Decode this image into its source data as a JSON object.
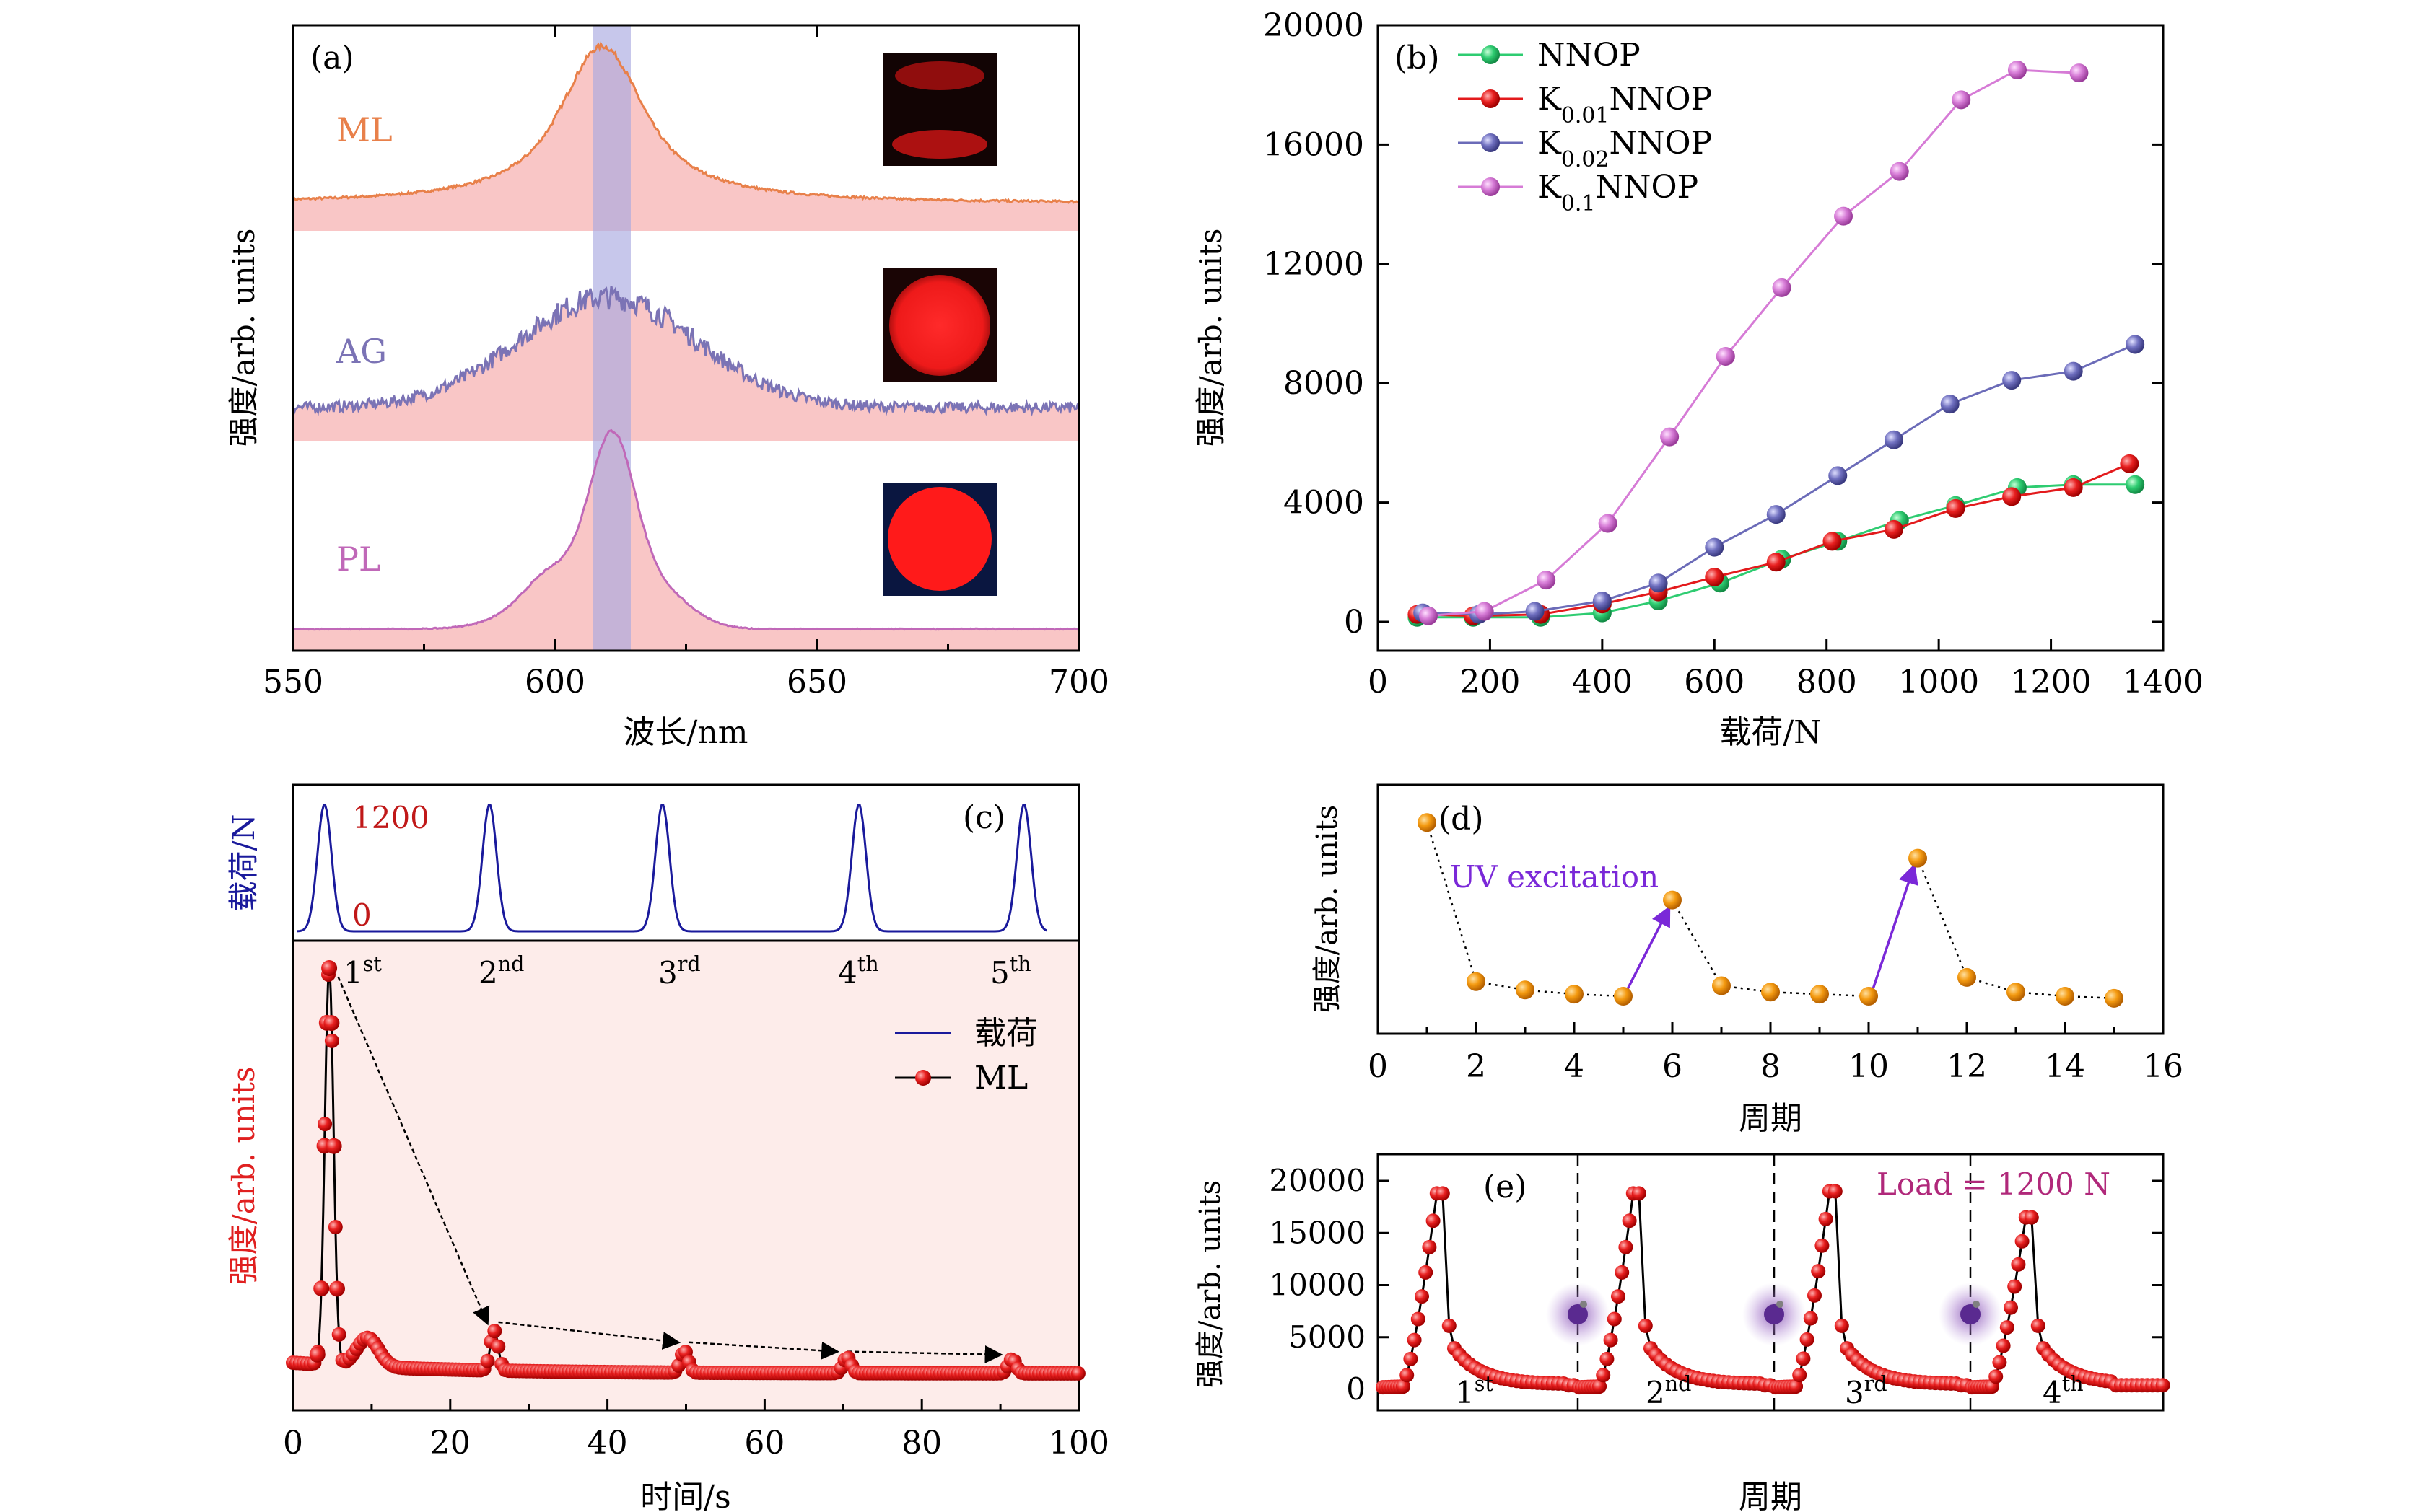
{
  "colors": {
    "ml_orange": "#e8804a",
    "ag_purple": "#7b73b5",
    "pl_pink": "#c068b8",
    "fill_pink": "#f9c6c6",
    "band": "#a9a9e0",
    "nnop": "#2ecc71",
    "k001": "#e31a1c",
    "k002": "#6b6bb8",
    "k01": "#d67bd6",
    "load_blue": "#1a1a9c",
    "ml_red": "#e02020",
    "d_orange": "#f0900a",
    "uv_violet": "#7a28d8",
    "e_red": "#c81818",
    "load_label": "#b0287a"
  },
  "panel_a": {
    "label": "(a)",
    "ylabel": "强度/arb. units",
    "xlabel": "波长/nm",
    "ticks": [
      "550",
      "600",
      "650",
      "700"
    ],
    "trace_labels": [
      "ML",
      "AG",
      "PL"
    ]
  },
  "panel_b": {
    "label": "(b)",
    "ylabel": "强度/arb. units",
    "xlabel": "载荷/N",
    "xticks": [
      "0",
      "200",
      "400",
      "600",
      "800",
      "1000",
      "1200",
      "1400"
    ],
    "yticks": [
      "0",
      "4000",
      "8000",
      "12000",
      "16000",
      "20000"
    ],
    "legend": [
      {
        "base": "NNOP",
        "sub": "",
        "rest": ""
      },
      {
        "base": "K",
        "sub": "0.01",
        "rest": "NNOP"
      },
      {
        "base": "K",
        "sub": "0.02",
        "rest": "NNOP"
      },
      {
        "base": "K",
        "sub": "0.1",
        "rest": "NNOP"
      }
    ]
  },
  "panel_c": {
    "label": "(c)",
    "top_ylabel": "载荷/N",
    "ylabel": "强度/arb. units",
    "xlabel": "时间/s",
    "xticks": [
      "0",
      "20",
      "40",
      "60",
      "80",
      "100"
    ],
    "load_ticks": [
      "1200",
      "0"
    ],
    "cycles": [
      {
        "num": "1",
        "sup": "st"
      },
      {
        "num": "2",
        "sup": "nd"
      },
      {
        "num": "3",
        "sup": "rd"
      },
      {
        "num": "4",
        "sup": "th"
      },
      {
        "num": "5",
        "sup": "th"
      }
    ],
    "legend": [
      "载荷",
      "ML"
    ]
  },
  "panel_d": {
    "label": "(d)",
    "ylabel": "强度/arb. units",
    "xlabel": "周期",
    "xticks": [
      "0",
      "2",
      "4",
      "6",
      "8",
      "10",
      "12",
      "14",
      "16"
    ],
    "annotation": "UV excitation"
  },
  "panel_e": {
    "label": "(e)",
    "ylabel": "强度/arb. units",
    "xlabel": "周期",
    "yticks": [
      "0",
      "5000",
      "10000",
      "15000",
      "20000"
    ],
    "annotation": "Load = 1200 N",
    "cycles": [
      {
        "num": "1",
        "sup": "st"
      },
      {
        "num": "2",
        "sup": "nd"
      },
      {
        "num": "3",
        "sup": "rd"
      },
      {
        "num": "4",
        "sup": "th"
      }
    ]
  },
  "chart_data": [
    {
      "panel": "a",
      "type": "line",
      "title": "",
      "xlabel": "波长/nm",
      "ylabel": "强度/arb. units",
      "xlim": [
        550,
        700
      ],
      "series": [
        {
          "name": "ML",
          "peak_nm": 609,
          "fwhm_nm": 24
        },
        {
          "name": "AG",
          "peak_nm": 610,
          "fwhm_nm": 40
        },
        {
          "name": "PL",
          "peak_nm": 611,
          "fwhm_nm": 18
        }
      ],
      "highlight_band_nm": [
        608,
        615
      ]
    },
    {
      "panel": "b",
      "type": "line",
      "xlabel": "载荷/N",
      "ylabel": "强度/arb. units",
      "xlim": [
        0,
        1400
      ],
      "ylim": [
        0,
        20000
      ],
      "series": [
        {
          "name": "NNOP",
          "x": [
            70,
            170,
            290,
            400,
            500,
            610,
            720,
            820,
            930,
            1030,
            1140,
            1240,
            1350
          ],
          "y": [
            150,
            150,
            150,
            300,
            700,
            1300,
            2100,
            2700,
            3400,
            3900,
            4500,
            4600,
            4600
          ]
        },
        {
          "name": "K0.01NNOP",
          "x": [
            70,
            170,
            290,
            400,
            500,
            600,
            710,
            810,
            920,
            1030,
            1130,
            1240,
            1340
          ],
          "y": [
            250,
            200,
            250,
            600,
            1000,
            1500,
            2000,
            2700,
            3100,
            3800,
            4200,
            4500,
            5300
          ]
        },
        {
          "name": "K0.02NNOP",
          "x": [
            80,
            180,
            280,
            400,
            500,
            600,
            710,
            820,
            920,
            1020,
            1130,
            1240,
            1350
          ],
          "y": [
            300,
            250,
            350,
            700,
            1300,
            2500,
            3600,
            4900,
            6100,
            7300,
            8100,
            8400,
            9300
          ]
        },
        {
          "name": "K0.1NNOP",
          "x": [
            90,
            190,
            300,
            410,
            520,
            620,
            720,
            830,
            930,
            1040,
            1140,
            1250
          ],
          "y": [
            200,
            350,
            1400,
            3300,
            6200,
            8900,
            11200,
            13600,
            15100,
            17500,
            18500,
            18400
          ]
        }
      ]
    },
    {
      "panel": "c",
      "type": "line",
      "xlabel": "时间/s",
      "xlim": [
        0,
        100
      ],
      "series": [
        {
          "name": "载荷",
          "peak_times": [
            4,
            25,
            47,
            72,
            93
          ],
          "peak_value": 1200
        },
        {
          "name": "ML",
          "peak_times": [
            4.5,
            25.5,
            50,
            70.5,
            91.5
          ]
        }
      ]
    },
    {
      "panel": "d",
      "type": "scatter",
      "xlabel": "周期",
      "xlim": [
        0,
        16
      ],
      "x": [
        1,
        2,
        3,
        4,
        5,
        6,
        7,
        8,
        9,
        10,
        11,
        12,
        13,
        14,
        15
      ],
      "y": [
        0.93,
        0.17,
        0.13,
        0.11,
        0.1,
        0.56,
        0.15,
        0.12,
        0.11,
        0.1,
        0.76,
        0.19,
        0.12,
        0.1,
        0.09
      ],
      "uv_excitation_after": [
        5,
        10
      ]
    },
    {
      "panel": "e",
      "type": "line",
      "xlabel": "周期",
      "ylabel": "强度/arb. units",
      "ylim": [
        -1500,
        22000
      ],
      "cycle_peaks": [
        18800,
        18800,
        19000,
        16500
      ],
      "annotation": "Load = 1200 N"
    }
  ]
}
